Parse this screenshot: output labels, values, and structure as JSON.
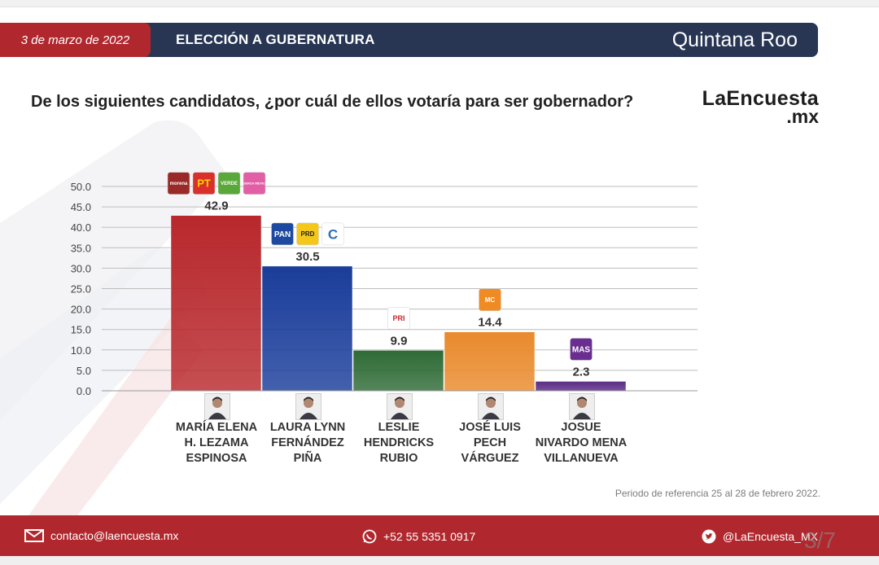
{
  "header": {
    "date": "3 de marzo de 2022",
    "election_title": "ELECCIÓN A GUBERNATURA",
    "state": "Quintana Roo"
  },
  "question": "De los siguientes candidatos, ¿por cuál de ellos votaría para ser gobernador?",
  "logo": {
    "line1": "LaEncuesta",
    "line2": ".mx"
  },
  "chart_data": {
    "type": "bar",
    "categories": [
      "MARÍA ELENA\nH. LEZAMA\nESPINOSA",
      "LAURA LYNN\nFERNÁNDEZ\nPIÑA",
      "LESLIE\nHENDRICKS\nRUBIO",
      "JOSÉ LUIS\nPECH\nVÁRGUEZ",
      "JOSUE\nNIVARDO MENA\nVILLANUEVA"
    ],
    "values": [
      42.9,
      30.5,
      9.9,
      14.4,
      2.3
    ],
    "value_labels": [
      "42.9",
      "30.5",
      "9.9",
      "14.4",
      "2.3"
    ],
    "colors": [
      "#b8282c",
      "#1a3d9a",
      "#2f6b36",
      "#e98a2c",
      "#5b2b86"
    ],
    "ylim": [
      0,
      50
    ],
    "yticks": [
      "0.0",
      "5.0",
      "10.0",
      "15.0",
      "20.0",
      "25.0",
      "30.0",
      "35.0",
      "40.0",
      "45.0",
      "50.0"
    ],
    "grid": true,
    "party_labels": [
      [
        "morena",
        "PT",
        "VERDE",
        "FUERZA MÉXICO"
      ],
      [
        "PAN",
        "PRD",
        "C"
      ],
      [
        "PRI"
      ],
      [
        "MC"
      ],
      [
        "MAS"
      ]
    ]
  },
  "reference_note": "Periodo de referencia 25 al 28 de febrero 2022.",
  "footer": {
    "email": "contacto@laencuesta.mx",
    "phone": "+52 55 5351 0917",
    "twitter": "@LaEncuesta_MX",
    "page": "3/7"
  },
  "icons": [
    "mail-icon",
    "whatsapp-icon",
    "twitter-icon"
  ],
  "colors": {
    "brand_red": "#b0282e",
    "navy": "#283654"
  }
}
